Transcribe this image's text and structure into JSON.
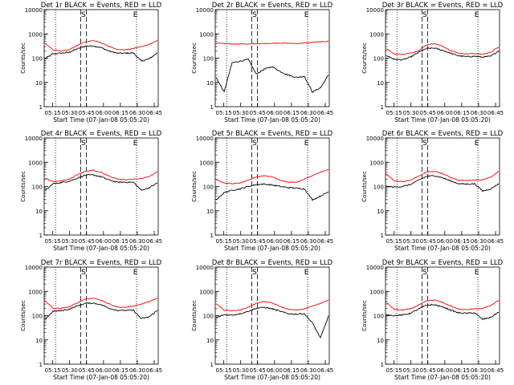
{
  "chart_data": [
    {
      "type": "line",
      "title": "Det 1r BLACK = Events, RED = LLD",
      "xlabel": "Start Time (07-Jan-08 05:05:20)",
      "ylabel": "Counts/sec",
      "yscale": "log",
      "ylim": [
        1,
        10000
      ],
      "xticks": [
        "05:15",
        "05:30",
        "05:45",
        "06:00",
        "06:15",
        "06:30",
        "06:45"
      ],
      "yticks": [
        "1",
        "10",
        "100",
        "1000",
        "10000"
      ],
      "markers": [
        "S",
        "E"
      ],
      "series": [
        {
          "color": "#000000",
          "values": [
            95,
            150,
            160,
            175,
            240,
            310,
            320,
            270,
            195,
            160,
            160,
            165,
            75,
            95,
            165
          ]
        },
        {
          "color": "#ff0000",
          "values": [
            420,
            220,
            200,
            220,
            330,
            470,
            530,
            430,
            300,
            225,
            220,
            250,
            300,
            370,
            530
          ]
        }
      ]
    },
    {
      "type": "line",
      "title": "Det 2r BLACK = Events, RED = LLD",
      "xlabel": "Start Time (07-Jan-08 05:05:20)",
      "ylabel": "Counts/sec",
      "yscale": "log",
      "ylim": [
        1,
        10000
      ],
      "xticks": [
        "05:15",
        "05:30",
        "05:45",
        "06:00",
        "06:15",
        "06:30",
        "06:45"
      ],
      "yticks": [
        "1",
        "10",
        "100",
        "1000",
        "10000"
      ],
      "markers": [
        "S",
        "E"
      ],
      "series": [
        {
          "color": "#000000",
          "values": [
            16,
            4,
            65,
            75,
            90,
            22,
            35,
            45,
            28,
            20,
            16,
            18,
            4,
            6,
            20
          ]
        },
        {
          "color": "#ff0000",
          "values": [
            420,
            400,
            380,
            390,
            380,
            390,
            400,
            410,
            420,
            410,
            400,
            420,
            450,
            470,
            500
          ]
        }
      ]
    },
    {
      "type": "line",
      "title": "Det 3r BLACK = Events, RED = LLD",
      "xlabel": "Start Time (07-Jan-08 05:05:20)",
      "ylabel": "Counts/sec",
      "yscale": "log",
      "ylim": [
        1,
        10000
      ],
      "xticks": [
        "05:15",
        "05:30",
        "05:45",
        "06:00",
        "06:15",
        "06:30",
        "06:45"
      ],
      "yticks": [
        "1",
        "10",
        "100",
        "1000",
        "10000"
      ],
      "markers": [
        "S",
        "E"
      ],
      "series": [
        {
          "color": "#000000",
          "values": [
            130,
            90,
            85,
            110,
            170,
            250,
            260,
            210,
            160,
            125,
            115,
            120,
            110,
            120,
            200
          ]
        },
        {
          "color": "#ff0000",
          "values": [
            250,
            150,
            145,
            160,
            200,
            350,
            400,
            310,
            210,
            160,
            150,
            155,
            145,
            175,
            290
          ]
        }
      ]
    },
    {
      "type": "line",
      "title": "Det 4r BLACK = Events, RED = LLD",
      "xlabel": "Start Time (07-Jan-08 05:05:20)",
      "ylabel": "Counts/sec",
      "yscale": "log",
      "ylim": [
        1,
        10000
      ],
      "xticks": [
        "05:15",
        "05:30",
        "05:45",
        "06:00",
        "06:15",
        "06:30",
        "06:45"
      ],
      "yticks": [
        "1",
        "10",
        "100",
        "1000",
        "10000"
      ],
      "markers": [
        "S",
        "E"
      ],
      "series": [
        {
          "color": "#000000",
          "values": [
            65,
            130,
            145,
            165,
            220,
            290,
            300,
            250,
            185,
            150,
            150,
            150,
            70,
            90,
            140
          ]
        },
        {
          "color": "#ff0000",
          "values": [
            220,
            160,
            170,
            200,
            300,
            420,
            470,
            380,
            270,
            200,
            190,
            200,
            210,
            260,
            400
          ]
        }
      ]
    },
    {
      "type": "line",
      "title": "Det 5r BLACK = Events, RED = LLD",
      "xlabel": "Start Time (07-Jan-08 05:05:20)",
      "ylabel": "Counts/sec",
      "yscale": "log",
      "ylim": [
        1,
        10000
      ],
      "xticks": [
        "05:15",
        "05:30",
        "05:45",
        "06:00",
        "06:15",
        "06:30",
        "06:45"
      ],
      "yticks": [
        "1",
        "10",
        "100",
        "1000",
        "10000"
      ],
      "markers": [
        "S",
        "E"
      ],
      "series": [
        {
          "color": "#000000",
          "values": [
            28,
            55,
            70,
            80,
            100,
            120,
            125,
            115,
            100,
            90,
            85,
            80,
            28,
            40,
            60
          ]
        },
        {
          "color": "#ff0000",
          "values": [
            200,
            140,
            130,
            140,
            180,
            250,
            280,
            250,
            180,
            150,
            150,
            200,
            280,
            380,
            500
          ]
        }
      ]
    },
    {
      "type": "line",
      "title": "Det 6r BLACK = Events, RED = LLD",
      "xlabel": "Start Time (07-Jan-08 05:05:20)",
      "ylabel": "Counts/sec",
      "yscale": "log",
      "ylim": [
        1,
        10000
      ],
      "xticks": [
        "05:15",
        "05:30",
        "05:45",
        "06:00",
        "06:15",
        "06:30",
        "06:45"
      ],
      "yticks": [
        "1",
        "10",
        "100",
        "1000",
        "10000"
      ],
      "markers": [
        "S",
        "E"
      ],
      "series": [
        {
          "color": "#000000",
          "values": [
            100,
            95,
            100,
            120,
            180,
            260,
            280,
            230,
            170,
            130,
            125,
            130,
            65,
            80,
            130
          ]
        },
        {
          "color": "#ff0000",
          "values": [
            330,
            170,
            160,
            180,
            260,
            390,
            420,
            340,
            240,
            180,
            175,
            185,
            190,
            240,
            410
          ]
        }
      ]
    },
    {
      "type": "line",
      "title": "Det 7r BLACK = Events, RED = LLD",
      "xlabel": "Start Time (07-Jan-08 05:05:20)",
      "ylabel": "Counts/sec",
      "yscale": "log",
      "ylim": [
        1,
        10000
      ],
      "xticks": [
        "05:15",
        "05:30",
        "05:45",
        "06:00",
        "06:15",
        "06:30",
        "06:45"
      ],
      "yticks": [
        "1",
        "10",
        "100",
        "1000",
        "10000"
      ],
      "markers": [
        "S",
        "E"
      ],
      "series": [
        {
          "color": "#000000",
          "values": [
            70,
            150,
            160,
            185,
            250,
            320,
            330,
            280,
            200,
            165,
            165,
            165,
            75,
            90,
            165
          ]
        },
        {
          "color": "#ff0000",
          "values": [
            420,
            200,
            200,
            230,
            330,
            480,
            530,
            430,
            300,
            225,
            220,
            250,
            300,
            380,
            520
          ]
        }
      ]
    },
    {
      "type": "line",
      "title": "Det 8r BLACK = Events, RED = LLD",
      "xlabel": "Start Time (07-Jan-08 05:05:20)",
      "ylabel": "Counts/sec",
      "yscale": "log",
      "ylim": [
        1,
        10000
      ],
      "xticks": [
        "05:15",
        "05:30",
        "05:45",
        "06:00",
        "06:15",
        "06:30",
        "06:45"
      ],
      "yticks": [
        "1",
        "10",
        "100",
        "1000",
        "10000"
      ],
      "markers": [
        "S",
        "E"
      ],
      "series": [
        {
          "color": "#000000",
          "values": [
            80,
            110,
            105,
            120,
            150,
            200,
            220,
            190,
            150,
            120,
            115,
            120,
            50,
            12,
            95
          ]
        },
        {
          "color": "#ff0000",
          "values": [
            310,
            170,
            160,
            170,
            220,
            320,
            380,
            330,
            240,
            180,
            170,
            190,
            250,
            320,
            430
          ]
        }
      ]
    },
    {
      "type": "line",
      "title": "Det 9r BLACK = Events, RED = LLD",
      "xlabel": "Start Time (07-Jan-08 05:05:20)",
      "ylabel": "Counts/sec",
      "yscale": "log",
      "ylim": [
        1,
        10000
      ],
      "xticks": [
        "05:15",
        "05:30",
        "05:45",
        "06:00",
        "06:15",
        "06:30",
        "06:45"
      ],
      "yticks": [
        "1",
        "10",
        "100",
        "1000",
        "10000"
      ],
      "markers": [
        "S",
        "E"
      ],
      "series": [
        {
          "color": "#000000",
          "values": [
            110,
            100,
            105,
            125,
            185,
            270,
            280,
            230,
            170,
            130,
            125,
            130,
            70,
            85,
            140
          ]
        },
        {
          "color": "#ff0000",
          "values": [
            350,
            180,
            170,
            190,
            270,
            400,
            440,
            350,
            250,
            185,
            180,
            190,
            200,
            260,
            420
          ]
        }
      ]
    }
  ]
}
